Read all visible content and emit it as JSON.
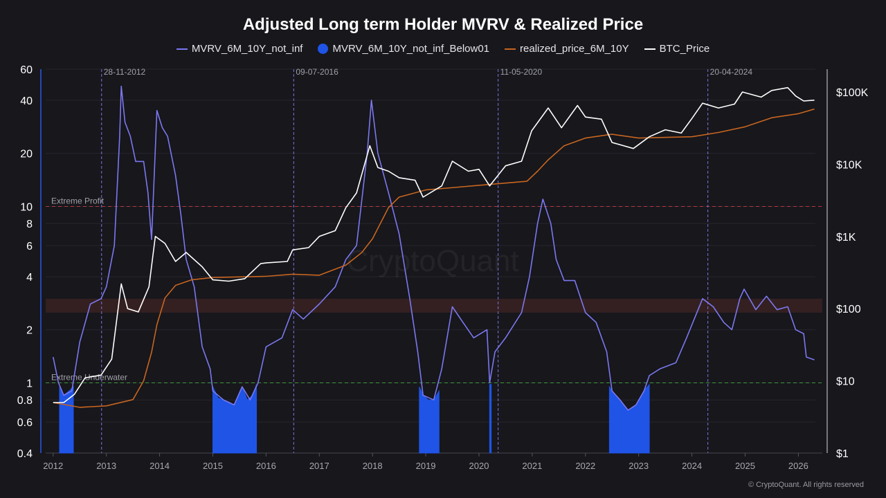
{
  "chart_data": {
    "type": "line",
    "title": "Adjusted Long term Holder MVRV & Realized Price",
    "legend_position": "top",
    "grid": true,
    "x_ticks": [
      "2012",
      "2013",
      "2014",
      "2015",
      "2016",
      "2017",
      "2018",
      "2019",
      "2020",
      "2021",
      "2022",
      "2023",
      "2024",
      "2025",
      "2026"
    ],
    "xlim": [
      2011.86,
      2026.45
    ],
    "y_left": {
      "scale": "log",
      "lim": [
        0.4,
        60
      ],
      "ticks": [
        "60",
        "40",
        "20",
        "10",
        "8",
        "6",
        "4",
        "2",
        "1",
        "0.8",
        "0.6",
        "0.4"
      ],
      "tick_values": [
        60,
        40,
        20,
        10,
        8,
        6,
        4,
        2,
        1,
        0.8,
        0.6,
        0.4
      ]
    },
    "y_right": {
      "scale": "log",
      "lim": [
        1,
        207000
      ],
      "ticks": [
        "$1",
        "$10",
        "$100",
        "$1K",
        "$10K",
        "$100K"
      ],
      "tick_values": [
        1,
        10,
        100,
        1000,
        10000,
        100000
      ]
    },
    "colors": {
      "mvrv": "#7b78f0",
      "below01": "#1f54e6",
      "realized": "#c8651f",
      "btc": "#ffffff",
      "extreme_profit": "#b8383d",
      "extreme_underwater": "#3f9a3a",
      "band": "#3a2222",
      "event": "#7a74e0"
    },
    "series": [
      {
        "name": "MVRV_6M_10Y_not_inf",
        "axis": "left",
        "x": [
          2012.0,
          2012.1,
          2012.2,
          2012.35,
          2012.5,
          2012.7,
          2012.9,
          2013.0,
          2013.15,
          2013.25,
          2013.28,
          2013.35,
          2013.45,
          2013.55,
          2013.7,
          2013.78,
          2013.85,
          2013.95,
          2014.05,
          2014.15,
          2014.3,
          2014.4,
          2014.5,
          2014.65,
          2014.8,
          2014.95,
          2015.0,
          2015.2,
          2015.4,
          2015.55,
          2015.7,
          2015.85,
          2016.0,
          2016.3,
          2016.5,
          2016.7,
          2017.0,
          2017.3,
          2017.5,
          2017.7,
          2017.9,
          2017.98,
          2018.1,
          2018.3,
          2018.5,
          2018.7,
          2018.85,
          2018.95,
          2019.15,
          2019.3,
          2019.5,
          2019.7,
          2019.9,
          2020.15,
          2020.2,
          2020.3,
          2020.5,
          2020.8,
          2020.95,
          2021.1,
          2021.2,
          2021.35,
          2021.45,
          2021.6,
          2021.8,
          2022.0,
          2022.2,
          2022.4,
          2022.5,
          2022.65,
          2022.8,
          2022.95,
          2023.1,
          2023.2,
          2023.4,
          2023.7,
          2023.9,
          2024.2,
          2024.4,
          2024.6,
          2024.75,
          2024.9,
          2024.98,
          2025.2,
          2025.4,
          2025.6,
          2025.8,
          2025.95,
          2026.1,
          2026.15,
          2026.3
        ],
        "y": [
          1.4,
          1.0,
          0.85,
          0.9,
          1.7,
          2.8,
          3.0,
          3.5,
          6,
          25,
          48,
          30,
          25,
          18,
          18,
          12,
          6.5,
          35,
          28,
          25,
          15,
          9,
          5,
          3.5,
          1.6,
          1.2,
          0.9,
          0.8,
          0.75,
          0.95,
          0.8,
          1.0,
          1.6,
          1.8,
          2.6,
          2.3,
          2.8,
          3.5,
          5,
          6,
          20,
          40,
          20,
          12,
          7,
          3,
          1.5,
          0.85,
          0.8,
          1.2,
          2.7,
          2.2,
          1.8,
          2.0,
          1.0,
          1.5,
          1.8,
          2.5,
          4,
          8,
          11,
          8,
          5,
          3.8,
          3.8,
          2.5,
          2.2,
          1.5,
          0.9,
          0.8,
          0.7,
          0.75,
          0.9,
          1.1,
          1.2,
          1.3,
          1.8,
          3.0,
          2.7,
          2.2,
          2.0,
          3.0,
          3.4,
          2.6,
          3.1,
          2.6,
          2.7,
          2.0,
          1.9,
          1.4,
          1.35
        ]
      },
      {
        "name": "realized_price_6M_10Y",
        "axis": "right",
        "x": [
          2012.0,
          2012.5,
          2013.0,
          2013.5,
          2013.7,
          2013.85,
          2013.95,
          2014.1,
          2014.3,
          2014.6,
          2015.0,
          2016.0,
          2016.5,
          2017.0,
          2017.5,
          2017.8,
          2018.0,
          2018.3,
          2018.5,
          2019.0,
          2020.0,
          2020.9,
          2021.1,
          2021.3,
          2021.6,
          2022.0,
          2022.5,
          2023.0,
          2024.0,
          2024.5,
          2025.0,
          2025.5,
          2026.0,
          2026.3
        ],
        "y": [
          5,
          4.3,
          4.5,
          5.5,
          10,
          25,
          60,
          140,
          210,
          250,
          270,
          280,
          300,
          290,
          400,
          600,
          930,
          2500,
          3500,
          4400,
          5100,
          5800,
          8000,
          11500,
          18000,
          23000,
          26000,
          23000,
          24000,
          27500,
          33000,
          44000,
          50000,
          58000
        ]
      },
      {
        "name": "BTC_Price",
        "axis": "right",
        "x": [
          2012.0,
          2012.2,
          2012.4,
          2012.6,
          2012.9,
          2013.1,
          2013.28,
          2013.4,
          2013.6,
          2013.8,
          2013.92,
          2014.1,
          2014.3,
          2014.5,
          2014.8,
          2015.0,
          2015.3,
          2015.6,
          2015.9,
          2016.0,
          2016.4,
          2016.5,
          2016.8,
          2017.0,
          2017.3,
          2017.5,
          2017.7,
          2017.95,
          2018.1,
          2018.3,
          2018.5,
          2018.8,
          2018.95,
          2019.3,
          2019.5,
          2019.8,
          2020.0,
          2020.2,
          2020.5,
          2020.8,
          2020.99,
          2021.3,
          2021.55,
          2021.85,
          2022.0,
          2022.3,
          2022.5,
          2022.9,
          2023.2,
          2023.5,
          2023.8,
          2024.0,
          2024.2,
          2024.5,
          2024.8,
          2024.95,
          2025.3,
          2025.5,
          2025.8,
          2025.95,
          2026.1,
          2026.3
        ],
        "y": [
          5,
          5,
          6.5,
          11,
          12,
          20,
          220,
          100,
          90,
          200,
          1000,
          800,
          450,
          600,
          380,
          250,
          240,
          260,
          420,
          430,
          450,
          650,
          700,
          1000,
          1200,
          2500,
          4000,
          18000,
          9000,
          8000,
          6500,
          6000,
          3500,
          5000,
          11000,
          8000,
          8500,
          5000,
          9500,
          11000,
          29000,
          60000,
          32000,
          65000,
          45000,
          42000,
          20000,
          16500,
          24000,
          30000,
          27000,
          43000,
          70000,
          60000,
          68000,
          100000,
          85000,
          105000,
          115000,
          88000,
          75000,
          77000
        ]
      }
    ],
    "below01": {
      "name": "MVRV_6M_10Y_not_inf_Below01",
      "segments": [
        {
          "x": [
            2012.12,
            2012.2,
            2012.3,
            2012.38
          ],
          "y": [
            0.95,
            0.85,
            0.9,
            0.95
          ]
        },
        {
          "x": [
            2015.0,
            2015.1,
            2015.2,
            2015.3,
            2015.4,
            2015.55,
            2015.65,
            2015.75,
            2015.82
          ],
          "y": [
            0.95,
            0.82,
            0.8,
            0.78,
            0.75,
            0.95,
            0.8,
            0.85,
            0.98
          ]
        },
        {
          "x": [
            2018.88,
            2018.95,
            2019.05,
            2019.15,
            2019.25
          ],
          "y": [
            0.95,
            0.85,
            0.8,
            0.8,
            0.9
          ]
        },
        {
          "x": [
            2020.2,
            2020.23
          ],
          "y": [
            0.98,
            0.98
          ]
        },
        {
          "x": [
            2022.45,
            2022.55,
            2022.65,
            2022.8,
            2022.95,
            2023.1,
            2023.2
          ],
          "y": [
            0.95,
            0.85,
            0.8,
            0.7,
            0.75,
            0.9,
            0.98
          ]
        }
      ]
    },
    "reference_lines": [
      {
        "label": "Extreme Profit",
        "value": 10
      },
      {
        "label": "Extreme Underwater",
        "value": 1
      }
    ],
    "band": [
      2.5,
      3.0
    ],
    "events": [
      {
        "label": "28-11-2012",
        "x": 2012.91
      },
      {
        "label": "09-07-2016",
        "x": 2016.52
      },
      {
        "label": "11-05-2020",
        "x": 2020.36
      },
      {
        "label": "20-04-2024",
        "x": 2024.3
      }
    ]
  },
  "legend": [
    {
      "label": "MVRV_6M_10Y_not_inf",
      "marker": "line",
      "color": "#7b78f0"
    },
    {
      "label": "MVRV_6M_10Y_not_inf_Below01",
      "marker": "dot",
      "color": "#1f54e6"
    },
    {
      "label": "realized_price_6M_10Y",
      "marker": "line",
      "color": "#c8651f"
    },
    {
      "label": "BTC_Price",
      "marker": "line",
      "color": "#ffffff"
    }
  ],
  "watermark": "CryptoQuant",
  "footer": "© CryptoQuant. All rights reserved"
}
